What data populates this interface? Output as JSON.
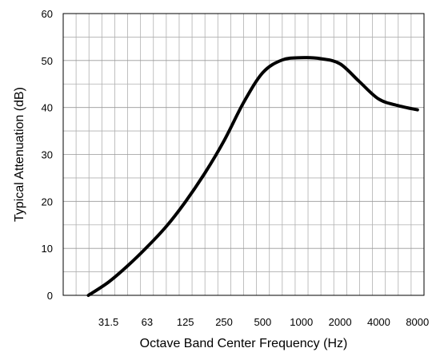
{
  "chart_data": {
    "type": "line",
    "title": "",
    "xlabel": "Octave Band Center Frequency (Hz)",
    "ylabel": "Typical Attenuation (dB)",
    "x_scale": "log2",
    "xticks": [
      "31.5",
      "63",
      "125",
      "250",
      "500",
      "1000",
      "2000",
      "4000",
      "8000"
    ],
    "xlim": [
      14,
      9000
    ],
    "ylim": [
      0,
      60
    ],
    "yticks": [
      "0",
      "10",
      "20",
      "30",
      "40",
      "50",
      "60"
    ],
    "grid": true,
    "line_color": "#000000",
    "grid_color": "#b0b0b0",
    "series": [
      {
        "x": [
          22,
          31.5,
          44.5,
          63,
          89,
          125,
          177,
          250,
          354,
          500,
          707,
          1000,
          1414,
          2000,
          2828,
          4000,
          5657,
          8000
        ],
        "y": [
          0,
          2.8,
          6.3,
          10.3,
          14.7,
          19.9,
          26.0,
          32.9,
          41.0,
          47.4,
          50.1,
          50.6,
          50.4,
          49.3,
          45.5,
          41.8,
          40.4,
          39.5
        ]
      }
    ]
  }
}
